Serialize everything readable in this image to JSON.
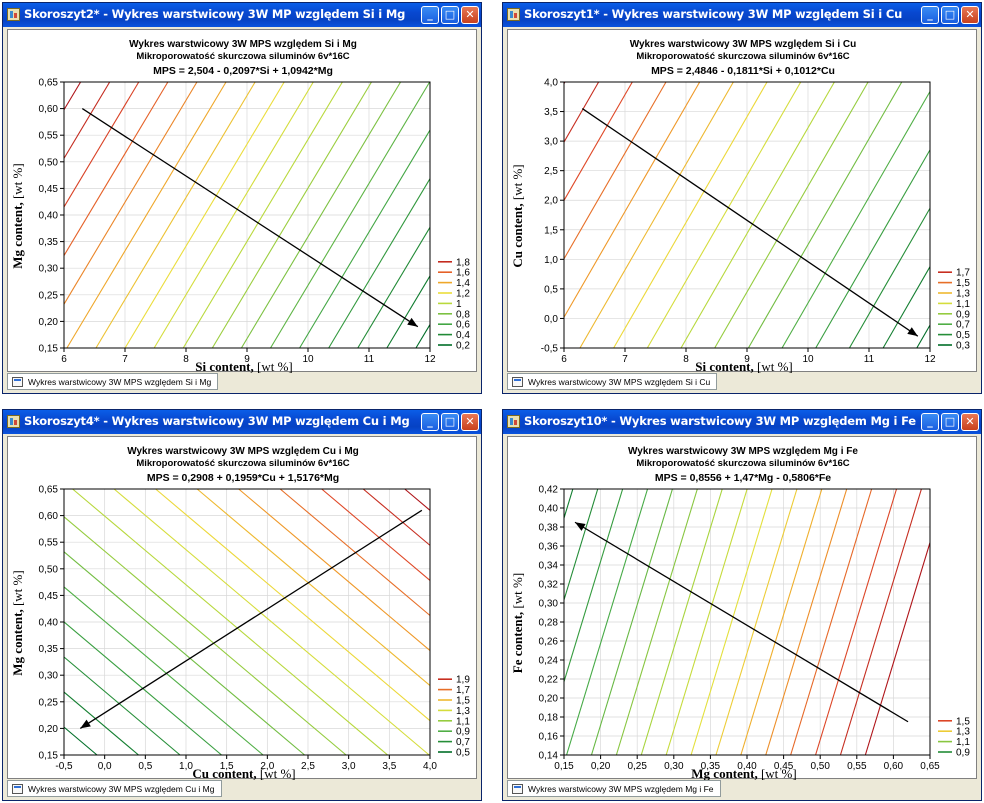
{
  "windows": [
    {
      "title": "Skoroszyt2* - Wykres warstwicowy 3W  MP względem Si i Mg",
      "tab": "Wykres warstwicowy 3W MPS względem Si i Mg",
      "chart": {
        "title": "Wykres warstwicowy 3W MPS względem Si i Mg",
        "subtitle": "Mikroporowatość skurczowa siluminów 6v*16C",
        "equation": "MPS = 2,504 - 0,2097*Si + 1,0942*Mg",
        "xlabel_bold": "Si content,",
        "xlabel_rest": " [wt %]",
        "ylabel_bold": "Mg content,",
        "ylabel_rest": " [wt %]"
      }
    },
    {
      "title": "Skoroszyt1* - Wykres warstwicowy 3W  MP względem Si i Cu",
      "tab": "Wykres warstwicowy 3W MPS względem Si i Cu",
      "chart": {
        "title": "Wykres warstwicowy 3W MPS względem Si i Cu",
        "subtitle": "Mikroporowatość skurczowa siluminów 6v*16C",
        "equation": "MPS = 2,4846 - 0,1811*Si + 0,1012*Cu",
        "xlabel_bold": "Si content,",
        "xlabel_rest": " [wt %]",
        "ylabel_bold": "Cu content,",
        "ylabel_rest": " [wt %]"
      }
    },
    {
      "title": "Skoroszyt4* - Wykres warstwicowy 3W  MP względem Cu i Mg",
      "tab": "Wykres warstwicowy 3W MPS względem Cu i Mg",
      "chart": {
        "title": "Wykres warstwicowy 3W MPS względem Cu i Mg",
        "subtitle": "Mikroporowatość skurczowa siluminów 6v*16C",
        "equation": "MPS = 0,2908 + 0,1959*Cu + 1,5176*Mg",
        "xlabel_bold": "Cu content,",
        "xlabel_rest": " [wt %]",
        "ylabel_bold": "Mg content,",
        "ylabel_rest": " [wt %]"
      }
    },
    {
      "title": "Skoroszyt10* - Wykres warstwicowy 3W  MP względem Mg i Fe",
      "tab": "Wykres warstwicowy 3W MPS względem Mg i Fe",
      "chart": {
        "title": "Wykres warstwicowy 3W MPS względem Mg i Fe",
        "subtitle": "Mikroporowatość skurczowa siluminów 6v*16C",
        "equation": "MPS = 0,8556 + 1,47*Mg - 0,5806*Fe",
        "xlabel_bold": "Mg content,",
        "xlabel_rest": " [wt %]",
        "ylabel_bold": "Fe content,",
        "ylabel_rest": " [wt %]"
      }
    }
  ],
  "chart_data": [
    {
      "type": "contour",
      "model": {
        "intercept": 2.504,
        "coef_x": -0.2097,
        "coef_y": 1.0942
      },
      "x_ticks": [
        "6",
        "7",
        "8",
        "9",
        "10",
        "11",
        "12"
      ],
      "y_ticks": [
        "0,15",
        "0,20",
        "0,25",
        "0,30",
        "0,35",
        "0,40",
        "0,45",
        "0,50",
        "0,55",
        "0,60",
        "0,65"
      ],
      "xlim": [
        6,
        12
      ],
      "ylim": [
        0.15,
        0.65
      ],
      "legend": [
        "1,8",
        "1,6",
        "1,4",
        "1,2",
        "1",
        "0,8",
        "0,6",
        "0,4",
        "0,2"
      ],
      "levels": [
        0.2,
        0.3,
        0.4,
        0.5,
        0.6,
        0.7,
        0.8,
        0.9,
        1.0,
        1.1,
        1.2,
        1.3,
        1.4,
        1.5,
        1.6,
        1.7,
        1.8,
        1.9
      ],
      "arrow": {
        "from": [
          6.3,
          0.6
        ],
        "to": [
          11.8,
          0.19
        ]
      },
      "legend_placement": "right",
      "grid": true
    },
    {
      "type": "contour",
      "model": {
        "intercept": 2.4846,
        "coef_x": -0.1811,
        "coef_y": 0.1012
      },
      "x_ticks": [
        "6",
        "7",
        "8",
        "9",
        "10",
        "11",
        "12"
      ],
      "y_ticks": [
        "-0,5",
        "0,0",
        "0,5",
        "1,0",
        "1,5",
        "2,0",
        "2,5",
        "3,0",
        "3,5",
        "4,0"
      ],
      "xlim": [
        6,
        12
      ],
      "ylim": [
        -0.5,
        4.0
      ],
      "legend": [
        "1,7",
        "1,5",
        "1,3",
        "1,1",
        "0,9",
        "0,7",
        "0,5",
        "0,3"
      ],
      "levels": [
        0.3,
        0.4,
        0.5,
        0.6,
        0.7,
        0.8,
        0.9,
        1.0,
        1.1,
        1.2,
        1.3,
        1.4,
        1.5,
        1.6,
        1.7,
        1.8
      ],
      "arrow": {
        "from": [
          6.3,
          3.55
        ],
        "to": [
          11.8,
          -0.3
        ]
      },
      "legend_placement": "right",
      "grid": true
    },
    {
      "type": "contour",
      "model": {
        "intercept": 0.2908,
        "coef_x": 0.1959,
        "coef_y": 1.5176
      },
      "x_ticks": [
        "-0,5",
        "0,0",
        "0,5",
        "1,0",
        "1,5",
        "2,0",
        "2,5",
        "3,0",
        "3,5",
        "4,0"
      ],
      "y_ticks": [
        "0,15",
        "0,20",
        "0,25",
        "0,30",
        "0,35",
        "0,40",
        "0,45",
        "0,50",
        "0,55",
        "0,60",
        "0,65"
      ],
      "xlim": [
        -0.5,
        4.0
      ],
      "ylim": [
        0.15,
        0.65
      ],
      "legend": [
        "1,9",
        "1,7",
        "1,5",
        "1,3",
        "1,1",
        "0,9",
        "0,7",
        "0,5"
      ],
      "levels": [
        0.5,
        0.6,
        0.7,
        0.8,
        0.9,
        1.0,
        1.1,
        1.2,
        1.3,
        1.4,
        1.5,
        1.6,
        1.7,
        1.8,
        1.9,
        2.0
      ],
      "arrow": {
        "from": [
          3.9,
          0.61
        ],
        "to": [
          -0.3,
          0.2
        ]
      },
      "legend_placement": "right",
      "grid": true
    },
    {
      "type": "contour",
      "model": {
        "intercept": 0.8556,
        "coef_x": 1.47,
        "coef_y": -0.5806
      },
      "x_ticks": [
        "0,15",
        "0,20",
        "0,25",
        "0,30",
        "0,35",
        "0,40",
        "0,45",
        "0,50",
        "0,55",
        "0,60",
        "0,65"
      ],
      "y_ticks": [
        "0,14",
        "0,16",
        "0,18",
        "0,20",
        "0,22",
        "0,24",
        "0,26",
        "0,28",
        "0,30",
        "0,32",
        "0,34",
        "0,36",
        "0,38",
        "0,40",
        "0,42"
      ],
      "xlim": [
        0.15,
        0.65
      ],
      "ylim": [
        0.14,
        0.42
      ],
      "legend": [
        "1,5",
        "1,3",
        "1,1",
        "0,9"
      ],
      "levels": [
        0.8,
        0.85,
        0.9,
        0.95,
        1.0,
        1.05,
        1.1,
        1.15,
        1.2,
        1.25,
        1.3,
        1.35,
        1.4,
        1.45,
        1.5,
        1.55,
        1.6
      ],
      "arrow": {
        "from": [
          0.62,
          0.175
        ],
        "to": [
          0.165,
          0.385
        ]
      },
      "legend_placement": "right",
      "grid": true
    }
  ]
}
